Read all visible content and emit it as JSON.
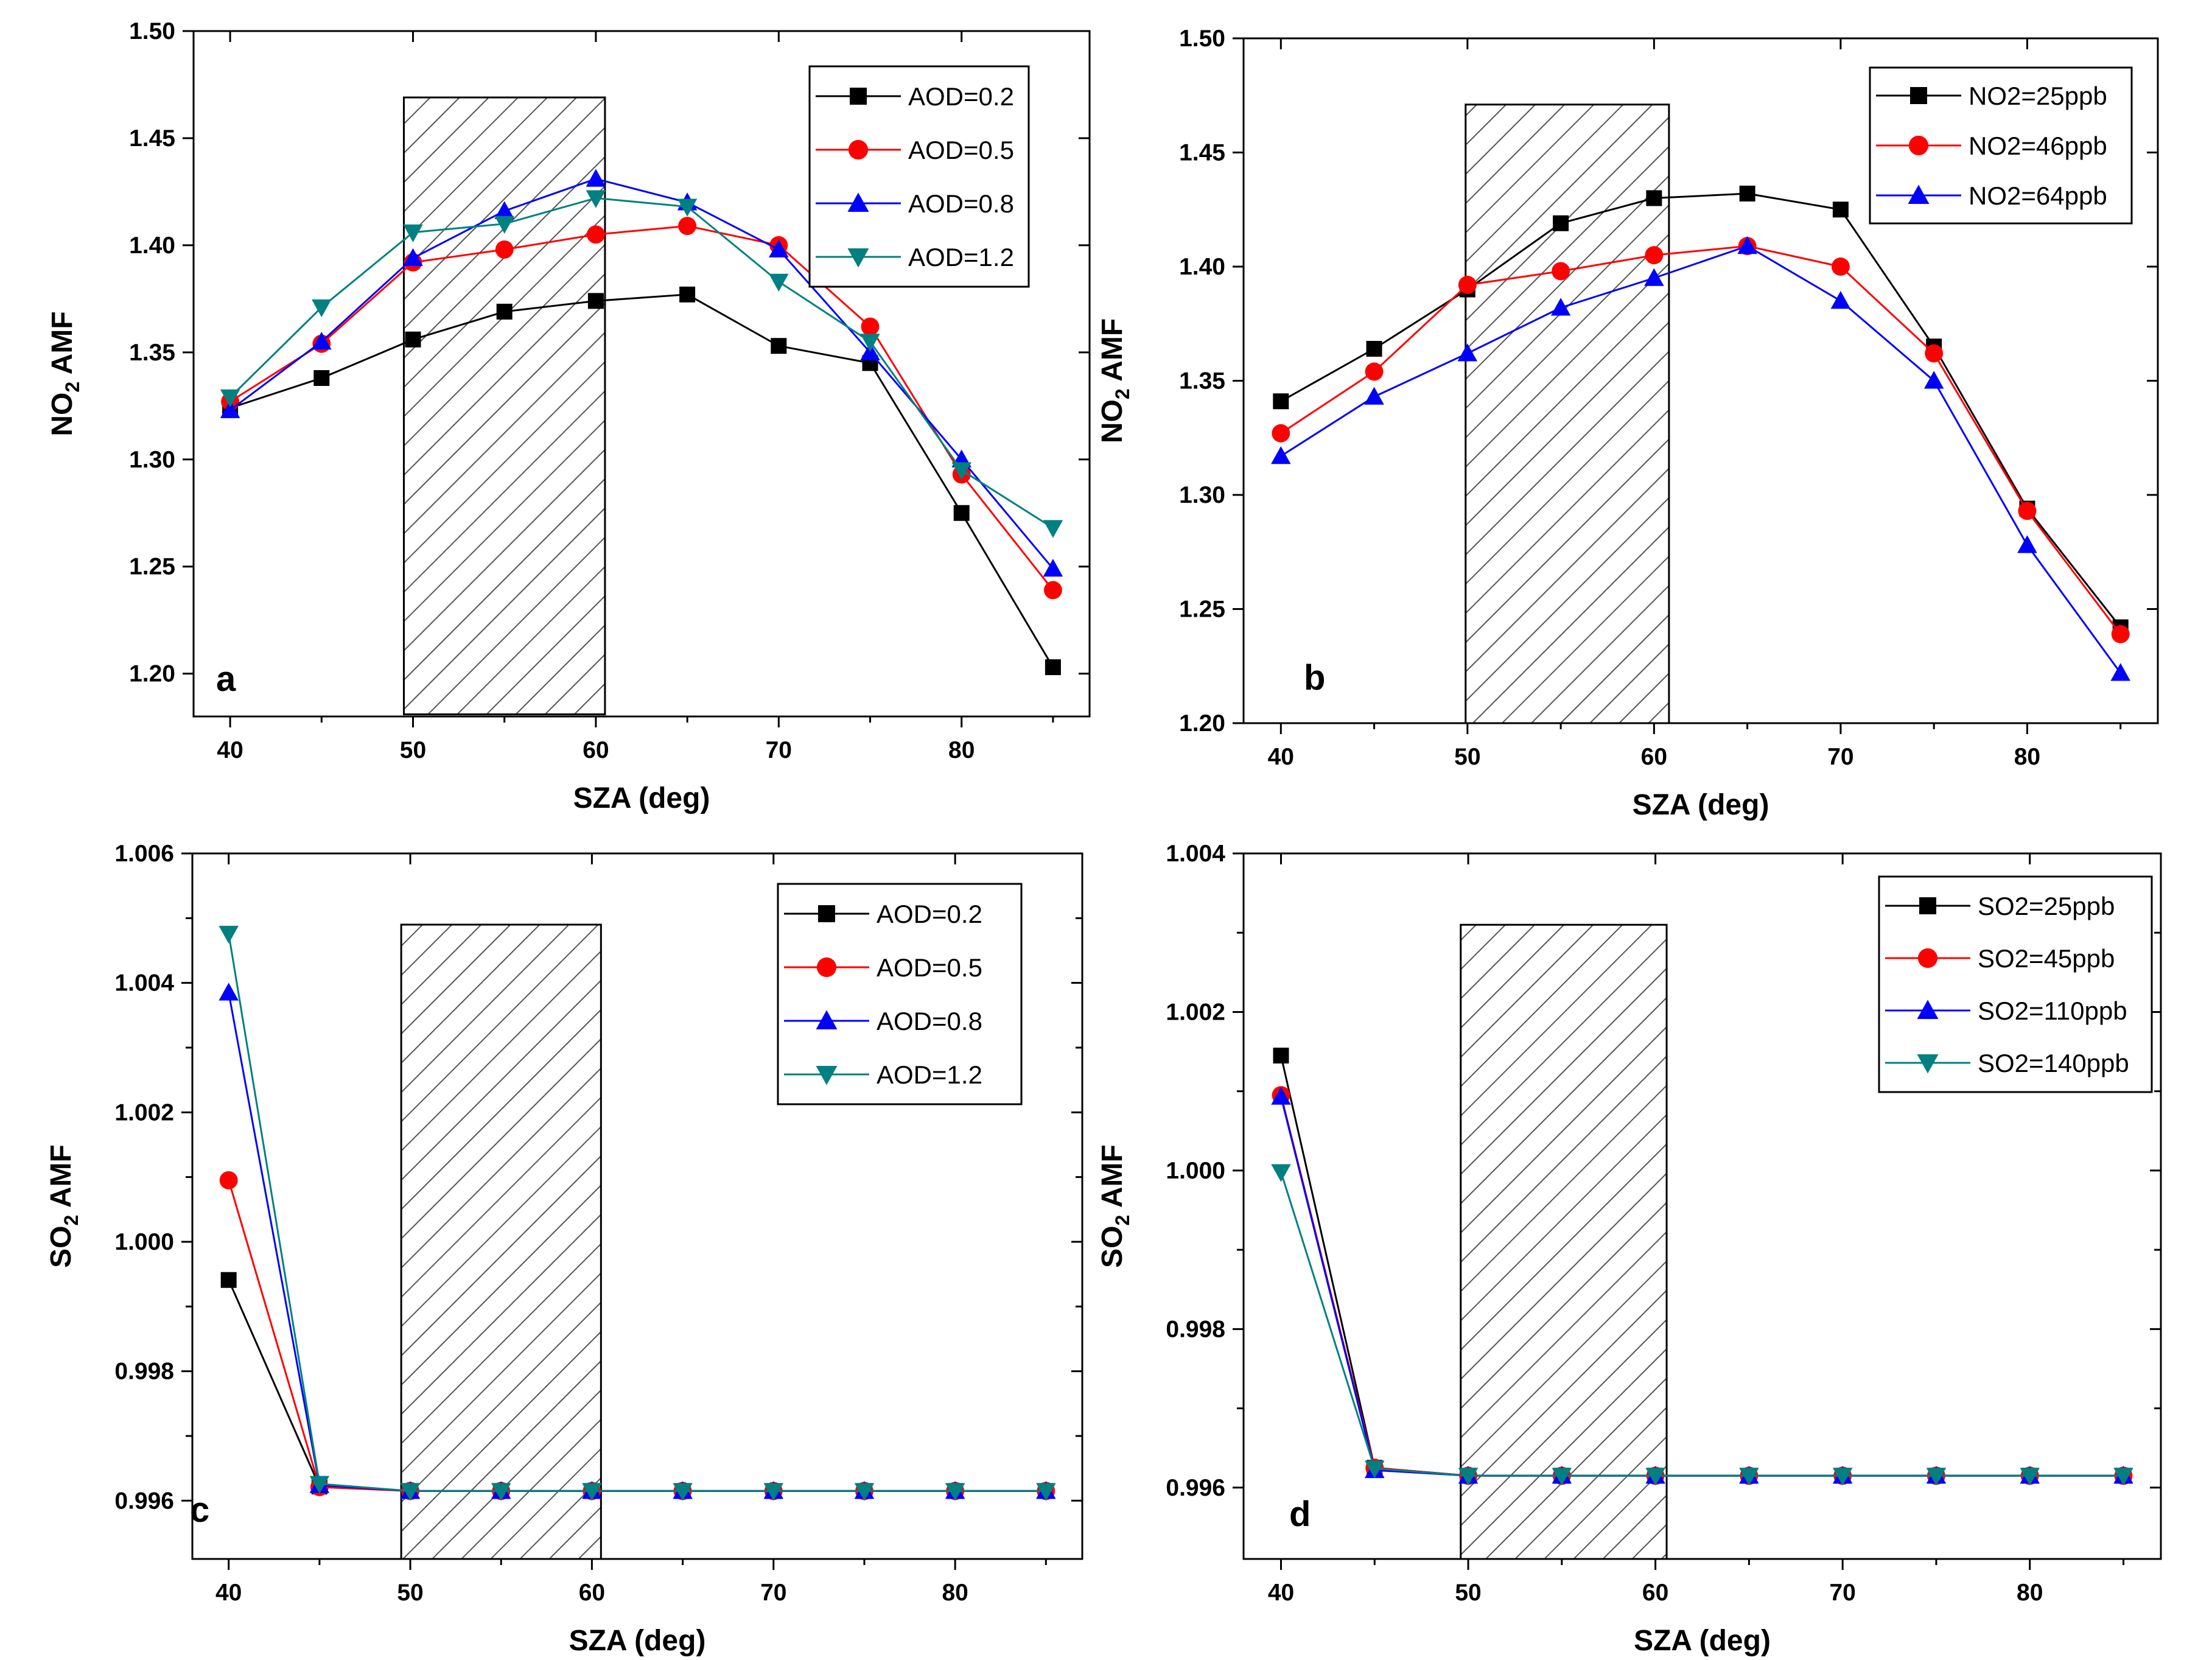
{
  "chart_data": [
    {
      "type": "line",
      "panel": "a",
      "xlabel": "SZA (deg)",
      "ylabel": "NO2 AMF",
      "ylabel_main": "NO",
      "ylabel_sub": "2",
      "ylabel_rest": " AMF",
      "xlim": [
        38,
        87
      ],
      "ylim": [
        1.18,
        1.5
      ],
      "xticks": [
        40,
        50,
        60,
        70,
        80
      ],
      "yticks": [
        1.2,
        1.25,
        1.3,
        1.35,
        1.4,
        1.45,
        1.5
      ],
      "ytick_labels": [
        "1.20",
        "1.25",
        "1.30",
        "1.35",
        "1.40",
        "1.45",
        "1.50"
      ],
      "highlight": {
        "x0": 49.5,
        "x1": 60.5,
        "y0": 1.181,
        "y1": 1.469
      },
      "legend_position": "top-right",
      "x": [
        40,
        45,
        50,
        55,
        60,
        65,
        70,
        75,
        80,
        85
      ],
      "series": [
        {
          "name": "AOD=0.2",
          "color": "#000000",
          "marker": "square",
          "values": [
            1.324,
            1.338,
            1.356,
            1.369,
            1.374,
            1.377,
            1.353,
            1.345,
            1.275,
            1.203
          ]
        },
        {
          "name": "AOD=0.5",
          "color": "#ff0000",
          "marker": "circle",
          "values": [
            1.327,
            1.354,
            1.392,
            1.398,
            1.405,
            1.409,
            1.4,
            1.362,
            1.293,
            1.239
          ]
        },
        {
          "name": "AOD=0.8",
          "color": "#0000ff",
          "marker": "triangle-up",
          "values": [
            1.323,
            1.355,
            1.394,
            1.416,
            1.431,
            1.42,
            1.398,
            1.35,
            1.3,
            1.249
          ]
        },
        {
          "name": "AOD=1.2",
          "color": "#008080",
          "marker": "triangle-down",
          "values": [
            1.329,
            1.371,
            1.406,
            1.41,
            1.422,
            1.418,
            1.383,
            1.355,
            1.295,
            1.268
          ]
        }
      ]
    },
    {
      "type": "line",
      "panel": "b",
      "xlabel": "SZA (deg)",
      "ylabel": "NO2 AMF",
      "ylabel_main": "NO",
      "ylabel_sub": "2",
      "ylabel_rest": " AMF",
      "xlim": [
        38,
        87
      ],
      "ylim": [
        1.2,
        1.5
      ],
      "xticks": [
        40,
        50,
        60,
        70,
        80
      ],
      "yticks": [
        1.2,
        1.25,
        1.3,
        1.35,
        1.4,
        1.45,
        1.5
      ],
      "ytick_labels": [
        "1.20",
        "1.25",
        "1.30",
        "1.35",
        "1.40",
        "1.45",
        "1.50"
      ],
      "highlight": {
        "x0": 49.9,
        "x1": 60.8,
        "y0": 1.2,
        "y1": 1.471
      },
      "legend_position": "top-right",
      "x": [
        40,
        45,
        50,
        55,
        60,
        65,
        70,
        75,
        80,
        85
      ],
      "series": [
        {
          "name": "NO2=25ppb",
          "color": "#000000",
          "marker": "square",
          "values": [
            1.341,
            1.364,
            1.39,
            1.419,
            1.43,
            1.432,
            1.425,
            1.365,
            1.294,
            1.242
          ]
        },
        {
          "name": "NO2=46ppb",
          "color": "#ff0000",
          "marker": "circle",
          "values": [
            1.327,
            1.354,
            1.392,
            1.398,
            1.405,
            1.409,
            1.4,
            1.362,
            1.293,
            1.239
          ]
        },
        {
          "name": "NO2=64ppb",
          "color": "#0000ff",
          "marker": "triangle-up",
          "values": [
            1.317,
            1.343,
            1.362,
            1.382,
            1.395,
            1.409,
            1.385,
            1.35,
            1.278,
            1.222
          ]
        }
      ]
    },
    {
      "type": "line",
      "panel": "c",
      "xlabel": "SZA (deg)",
      "ylabel": "SO2 AMF",
      "ylabel_main": "SO",
      "ylabel_sub": "2",
      "ylabel_rest": " AMF",
      "xlim": [
        38,
        87
      ],
      "ylim": [
        0.9951,
        1.006
      ],
      "xticks": [
        40,
        50,
        60,
        70,
        80
      ],
      "yticks": [
        0.996,
        0.997,
        0.998,
        0.999,
        1.0,
        1.001,
        1.002,
        1.003,
        1.004,
        1.005,
        1.006
      ],
      "ytick_labels": [
        "0.996",
        "",
        "0.998",
        "",
        "1.000",
        "",
        "1.002",
        "",
        "1.004",
        "",
        "1.006"
      ],
      "highlight": {
        "x0": 49.5,
        "x1": 60.5,
        "y0": 0.9951,
        "y1": 1.0049
      },
      "legend_position": "top-right",
      "x": [
        40,
        45,
        50,
        55,
        60,
        65,
        70,
        75,
        80,
        85
      ],
      "series": [
        {
          "name": "AOD=0.2",
          "color": "#000000",
          "marker": "square",
          "values": [
            0.99941,
            0.99622,
            0.99615,
            0.99615,
            0.99615,
            0.99615,
            0.99615,
            0.99615,
            0.99615,
            0.99615
          ]
        },
        {
          "name": "AOD=0.5",
          "color": "#ff0000",
          "marker": "circle",
          "values": [
            1.00095,
            0.99621,
            0.99615,
            0.99615,
            0.99615,
            0.99615,
            0.99615,
            0.99615,
            0.99615,
            0.99615
          ]
        },
        {
          "name": "AOD=0.8",
          "color": "#0000ff",
          "marker": "triangle-up",
          "values": [
            1.00385,
            0.99624,
            0.99615,
            0.99615,
            0.99615,
            0.99615,
            0.99615,
            0.99615,
            0.99615,
            0.99615
          ]
        },
        {
          "name": "AOD=1.2",
          "color": "#008080",
          "marker": "triangle-down",
          "values": [
            1.00476,
            0.99626,
            0.99615,
            0.99615,
            0.99615,
            0.99615,
            0.99615,
            0.99615,
            0.99615,
            0.99615
          ]
        }
      ]
    },
    {
      "type": "line",
      "panel": "d",
      "xlabel": "SZA (deg)",
      "ylabel": "SO2 AMF",
      "ylabel_main": "SO",
      "ylabel_sub": "2",
      "ylabel_rest": " AMF",
      "xlim": [
        38,
        87
      ],
      "ylim": [
        0.9951,
        1.004
      ],
      "xticks": [
        40,
        50,
        60,
        70,
        80
      ],
      "yticks": [
        0.996,
        0.997,
        0.998,
        0.999,
        1.0,
        1.001,
        1.002,
        1.003,
        1.004
      ],
      "ytick_labels": [
        "0.996",
        "",
        "0.998",
        "",
        "1.000",
        "",
        "1.002",
        "",
        "1.004"
      ],
      "highlight": {
        "x0": 49.6,
        "x1": 60.6,
        "y0": 0.9951,
        "y1": 1.0031
      },
      "legend_position": "top-right",
      "x": [
        40,
        45,
        50,
        55,
        60,
        65,
        70,
        75,
        80,
        85
      ],
      "series": [
        {
          "name": "SO2=25ppb",
          "color": "#000000",
          "marker": "square",
          "values": [
            1.00145,
            0.99625,
            0.99615,
            0.99615,
            0.99615,
            0.99615,
            0.99615,
            0.99615,
            0.99615,
            0.99615
          ]
        },
        {
          "name": "SO2=45ppb",
          "color": "#ff0000",
          "marker": "circle",
          "values": [
            1.00095,
            0.99625,
            0.99615,
            0.99615,
            0.99615,
            0.99615,
            0.99615,
            0.99615,
            0.99615,
            0.99615
          ]
        },
        {
          "name": "SO2=110ppb",
          "color": "#0000ff",
          "marker": "triangle-up",
          "values": [
            1.00093,
            0.99622,
            0.99615,
            0.99615,
            0.99615,
            0.99615,
            0.99615,
            0.99615,
            0.99615,
            0.99615
          ]
        },
        {
          "name": "SO2=140ppb",
          "color": "#008080",
          "marker": "triangle-down",
          "values": [
            0.99998,
            0.99624,
            0.99615,
            0.99615,
            0.99615,
            0.99615,
            0.99615,
            0.99615,
            0.99615,
            0.99615
          ]
        }
      ]
    }
  ]
}
